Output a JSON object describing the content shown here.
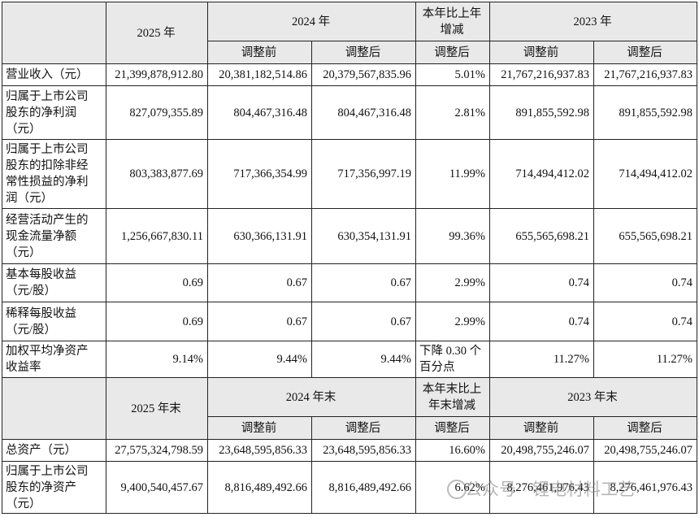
{
  "table": {
    "head1": [
      "2025 年",
      "2024 年",
      "本年比上年增减",
      "2023 年"
    ],
    "sub1": [
      "调整前",
      "调整后",
      "调整后",
      "调整前",
      "调整后"
    ],
    "rows": [
      [
        "营业收入（元）",
        "21,399,878,912.80",
        "20,381,182,514.86",
        "20,379,567,835.96",
        "5.01%",
        "21,767,216,937.83",
        "21,767,216,937.83"
      ],
      [
        "归属于上市公司股东的净利润（元）",
        "827,079,355.89",
        "804,467,316.48",
        "804,467,316.48",
        "2.81%",
        "891,855,592.98",
        "891,855,592.98"
      ],
      [
        "归属于上市公司股东的扣除非经常性损益的净利润（元）",
        "803,383,877.69",
        "717,366,354.99",
        "717,356,997.19",
        "11.99%",
        "714,494,412.02",
        "714,494,412.02"
      ],
      [
        "经营活动产生的现金流量净额（元）",
        "1,256,667,830.11",
        "630,366,131.91",
        "630,354,131.91",
        "99.36%",
        "655,565,698.21",
        "655,565,698.21"
      ],
      [
        "基本每股收益（元/股）",
        "0.69",
        "0.67",
        "0.67",
        "2.99%",
        "0.74",
        "0.74"
      ],
      [
        "稀释每股收益（元/股）",
        "0.69",
        "0.67",
        "0.67",
        "2.99%",
        "0.74",
        "0.74"
      ],
      [
        "加权平均净资产收益率",
        "9.14%",
        "9.44%",
        "9.44%",
        "下降 0.30 个百分点",
        "11.27%",
        "11.27%"
      ]
    ],
    "head2": [
      "2025 年末",
      "2024 年末",
      "本年末比上年末增减",
      "2023 年末"
    ],
    "sub2": [
      "调整前",
      "调整后",
      "调整后",
      "调整前",
      "调整后"
    ],
    "rows2": [
      [
        "总资产（元）",
        "27,575,324,798.59",
        "23,648,595,856.33",
        "23,648,595,856.33",
        "16.60%",
        "20,498,755,246.07",
        "20,498,755,246.07"
      ],
      [
        "归属于上市公司股东的净资产（元）",
        "9,400,540,457.67",
        "8,816,489,492.66",
        "8,816,489,492.66",
        "6.62%",
        "8,276,461,976.43",
        "8,276,461,976.43"
      ]
    ]
  },
  "watermark": "公众号 · 锂电材料工艺"
}
